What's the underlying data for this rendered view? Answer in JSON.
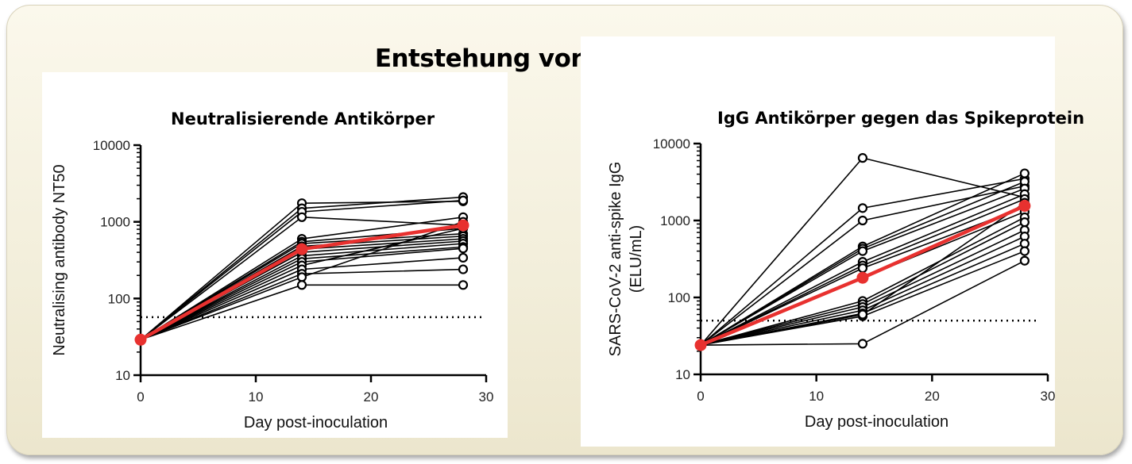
{
  "title": "Entstehung von Antikörpern",
  "chart_data": [
    {
      "type": "line",
      "title": "Neutralisierende Antikörper",
      "xlabel": "Day post-inoculation",
      "ylabel": "Neutralising antibody NT50",
      "y_scale": "log",
      "xlim": [
        0,
        30
      ],
      "ylim": [
        10,
        10000
      ],
      "x_ticks": [
        "0",
        "10",
        "20",
        "30"
      ],
      "y_ticks": [
        "10",
        "100",
        "1000",
        "10000"
      ],
      "threshold": 57,
      "x": [
        0,
        14,
        28
      ],
      "series": [
        {
          "values": [
            29,
            1750,
            1850
          ]
        },
        {
          "values": [
            29,
            1500,
            2100
          ]
        },
        {
          "values": [
            29,
            1350,
            1900
          ]
        },
        {
          "values": [
            29,
            1150,
            900
          ]
        },
        {
          "values": [
            29,
            600,
            1150
          ]
        },
        {
          "values": [
            29,
            550,
            820
          ]
        },
        {
          "values": [
            29,
            520,
            700
          ]
        },
        {
          "values": [
            29,
            480,
            650
          ]
        },
        {
          "values": [
            29,
            440,
            600
          ]
        },
        {
          "values": [
            29,
            400,
            560
          ]
        },
        {
          "values": [
            29,
            360,
            520
          ]
        },
        {
          "values": [
            29,
            330,
            470
          ]
        },
        {
          "values": [
            29,
            300,
            450
          ]
        },
        {
          "values": [
            29,
            270,
            820
          ]
        },
        {
          "values": [
            29,
            240,
            340
          ]
        },
        {
          "values": [
            29,
            210,
            240
          ]
        },
        {
          "values": [
            29,
            190,
            1000
          ]
        },
        {
          "values": [
            29,
            150,
            150
          ]
        }
      ],
      "mean": {
        "values": [
          29,
          440,
          900
        ],
        "color": "#e8312f"
      }
    },
    {
      "type": "line",
      "title": "IgG Antikörper gegen das Spikeprotein",
      "xlabel": "Day post-inoculation",
      "ylabel": [
        "SARS-CoV-2 anti-spike IgG",
        "(ELU/mL)"
      ],
      "y_scale": "log",
      "xlim": [
        0,
        30
      ],
      "ylim": [
        10,
        10000
      ],
      "x_ticks": [
        "0",
        "10",
        "20",
        "30"
      ],
      "y_ticks": [
        "10",
        "100",
        "1000",
        "10000"
      ],
      "threshold": 50,
      "x": [
        0,
        14,
        28
      ],
      "series": [
        {
          "values": [
            24,
            6500,
            2000
          ]
        },
        {
          "values": [
            24,
            1450,
            3500
          ]
        },
        {
          "values": [
            24,
            1000,
            2800
          ]
        },
        {
          "values": [
            24,
            460,
            4100
          ]
        },
        {
          "values": [
            24,
            430,
            3200
          ]
        },
        {
          "values": [
            24,
            400,
            2600
          ]
        },
        {
          "values": [
            24,
            290,
            2200
          ]
        },
        {
          "values": [
            24,
            260,
            1900
          ]
        },
        {
          "values": [
            24,
            240,
            1500
          ]
        },
        {
          "values": [
            24,
            180,
            1300
          ]
        },
        {
          "values": [
            24,
            90,
            1100
          ]
        },
        {
          "values": [
            24,
            82,
            950
          ]
        },
        {
          "values": [
            24,
            75,
            750
          ]
        },
        {
          "values": [
            24,
            68,
            620
          ]
        },
        {
          "values": [
            24,
            62,
            500
          ]
        },
        {
          "values": [
            24,
            57,
            400
          ]
        },
        {
          "values": [
            24,
            25,
            300
          ]
        },
        {
          "values": [
            24,
            60,
            1700
          ]
        }
      ],
      "mean": {
        "values": [
          24,
          180,
          1550
        ],
        "color": "#e8312f"
      }
    }
  ]
}
